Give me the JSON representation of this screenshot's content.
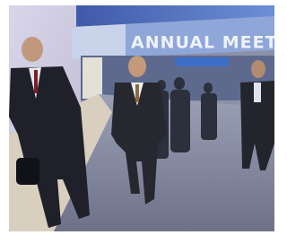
{
  "image": {
    "sign_text": "ANNUAL MEET"
  }
}
